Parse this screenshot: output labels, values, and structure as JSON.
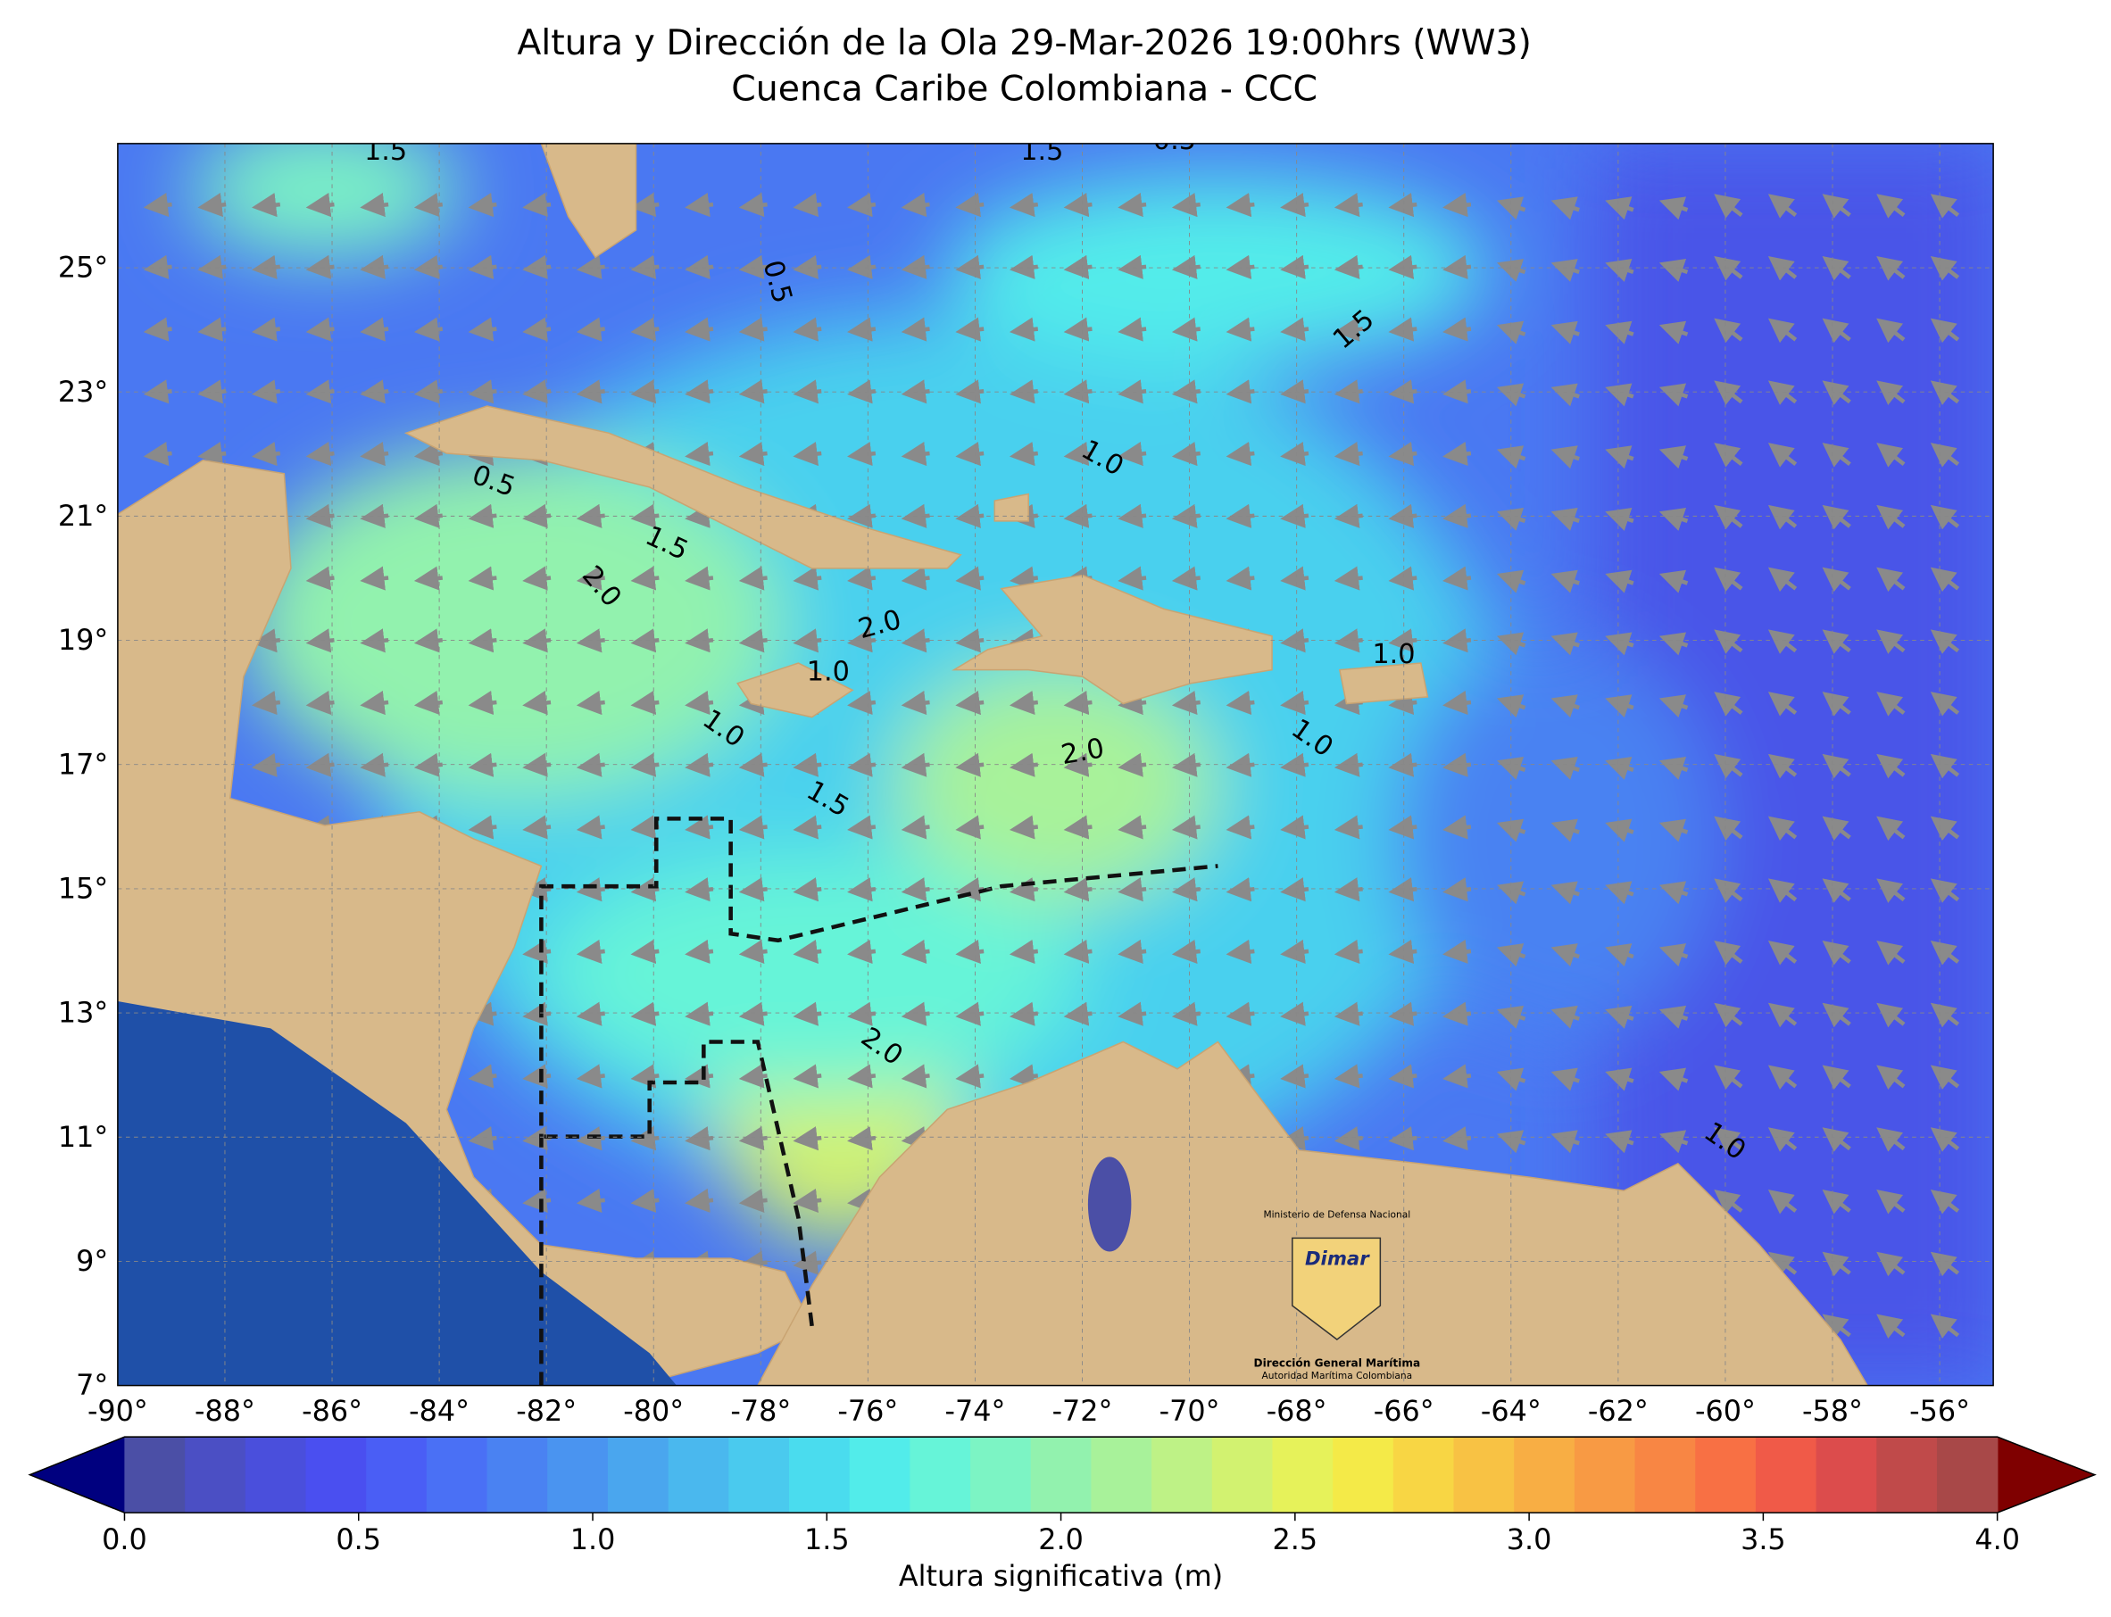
{
  "title": "Altura y Dirección de la Ola 29-Mar-2026 19:00hrs (WW3)",
  "subtitle": "Cuenca Caribe Colombiana - CCC",
  "lon_range": [
    -90,
    -55
  ],
  "lat_range": [
    7,
    27
  ],
  "lon_ticks": [
    {
      "value": -90,
      "label": "-90°"
    },
    {
      "value": -88,
      "label": "-88°"
    },
    {
      "value": -86,
      "label": "-86°"
    },
    {
      "value": -84,
      "label": "-84°"
    },
    {
      "value": -82,
      "label": "-82°"
    },
    {
      "value": -80,
      "label": "-80°"
    },
    {
      "value": -78,
      "label": "-78°"
    },
    {
      "value": -76,
      "label": "-76°"
    },
    {
      "value": -74,
      "label": "-74°"
    },
    {
      "value": -72,
      "label": "-72°"
    },
    {
      "value": -70,
      "label": "-70°"
    },
    {
      "value": -68,
      "label": "-68°"
    },
    {
      "value": -66,
      "label": "-66°"
    },
    {
      "value": -64,
      "label": "-64°"
    },
    {
      "value": -62,
      "label": "-62°"
    },
    {
      "value": -60,
      "label": "-60°"
    },
    {
      "value": -58,
      "label": "-58°"
    },
    {
      "value": -56,
      "label": "-56°"
    }
  ],
  "lat_ticks": [
    {
      "value": 7,
      "label": "7°"
    },
    {
      "value": 9,
      "label": "9°"
    },
    {
      "value": 11,
      "label": "11°"
    },
    {
      "value": 13,
      "label": "13°"
    },
    {
      "value": 15,
      "label": "15°"
    },
    {
      "value": 17,
      "label": "17°"
    },
    {
      "value": 19,
      "label": "19°"
    },
    {
      "value": 21,
      "label": "21°"
    },
    {
      "value": 23,
      "label": "23°"
    },
    {
      "value": 25,
      "label": "25°"
    }
  ],
  "contour_labels": [
    "1.5",
    "1.5",
    "0.5",
    "1.5",
    "0.5",
    "1.5",
    "1.0",
    "0.5",
    "1.5",
    "2.0",
    "2.0",
    "1.0",
    "1.0",
    "2.0",
    "1.5",
    "1.0",
    "2.0",
    "1.0",
    "1.0"
  ],
  "colorbar": {
    "label": "Altura significativa (m)",
    "range": [
      0,
      4
    ],
    "ticks": [
      {
        "value": 0,
        "label": "0.0"
      },
      {
        "value": 0.5,
        "label": "0.5"
      },
      {
        "value": 1,
        "label": "1.0"
      },
      {
        "value": 1.5,
        "label": "1.5"
      },
      {
        "value": 2,
        "label": "2.0"
      },
      {
        "value": 2.5,
        "label": "2.5"
      },
      {
        "value": 3,
        "label": "3.0"
      },
      {
        "value": 3.5,
        "label": "3.5"
      },
      {
        "value": 4,
        "label": "4.0"
      }
    ],
    "under_color": "#00007f",
    "over_color": "#7f0000",
    "colors": [
      "#4b4fa6",
      "#4b4fc4",
      "#4a4fdc",
      "#4a4ff0",
      "#4a5ef5",
      "#4a70f5",
      "#4a82f2",
      "#4a94f0",
      "#4aa6ee",
      "#4ab8ee",
      "#4acaee",
      "#4adcee",
      "#52ecea",
      "#66f4d8",
      "#7cf4c4",
      "#92f2ae",
      "#a8f29a",
      "#bef286",
      "#d2f270",
      "#e6f25a",
      "#f4ea48",
      "#f8d644",
      "#f8c244",
      "#f8ae44",
      "#f89a44",
      "#f88644",
      "#f87044",
      "#f05a48",
      "#dc4c4c",
      "#c04a4a",
      "#a84848"
    ]
  },
  "logo": {
    "ministry": "Ministerio de Defensa Nacional",
    "brand": "Dimar",
    "agency": "Dirección General Marítima",
    "authority": "Autoridad Marítima Colombiana"
  }
}
